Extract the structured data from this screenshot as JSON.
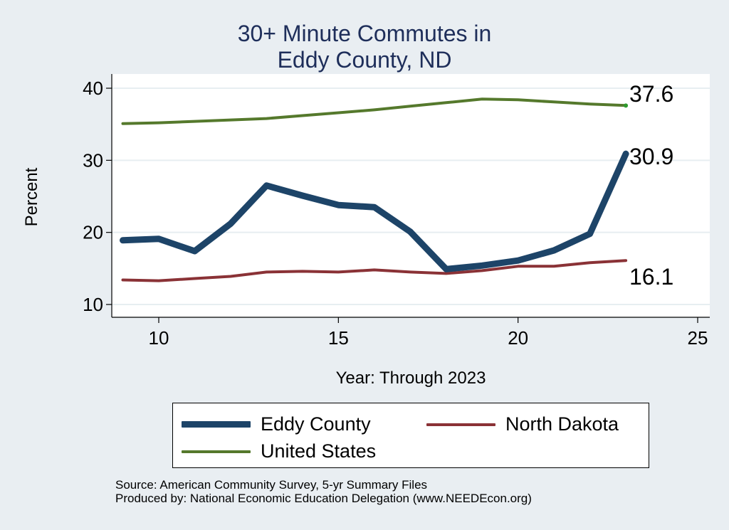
{
  "title_line1": "30+ Minute Commutes in",
  "title_line2": "Eddy County, ND",
  "notes": {
    "source": "Source: American Community Survey, 5-yr Summary Files",
    "produced": "Produced by: National Economic Education Delegation (www.NEEDEcon.org)"
  },
  "colors": {
    "eddy": "#1d4468",
    "nd": "#8a3236",
    "us": "#55792c",
    "grid": "#e7eef1",
    "background": "#e9eef2",
    "plot": "#ffffff",
    "title": "#1e2e5a"
  },
  "chart_data": {
    "type": "line",
    "title": "30+ Minute Commutes in Eddy County, ND",
    "xlabel": "Year: Through 2023",
    "ylabel": "Percent",
    "xlim": [
      8.7,
      25.4
    ],
    "ylim": [
      8.5,
      41.5
    ],
    "xticks": [
      10,
      15,
      20,
      25
    ],
    "yticks": [
      10,
      20,
      30,
      40
    ],
    "grid": true,
    "legend_position": "bottom",
    "x": [
      9,
      10,
      11,
      12,
      13,
      14,
      15,
      16,
      17,
      18,
      19,
      20,
      21,
      22,
      23
    ],
    "series": [
      {
        "key": "eddy",
        "name": "Eddy County",
        "values": [
          18.9,
          19.1,
          17.4,
          21.2,
          26.5,
          25.1,
          23.8,
          23.5,
          20.1,
          14.9,
          15.4,
          16.1,
          17.5,
          19.8,
          30.9
        ],
        "end_label": "30.9"
      },
      {
        "key": "nd",
        "name": "North Dakota",
        "values": [
          13.4,
          13.3,
          13.6,
          13.9,
          14.5,
          14.6,
          14.5,
          14.8,
          14.5,
          14.3,
          14.7,
          15.3,
          15.3,
          15.8,
          16.1
        ],
        "end_label": "16.1"
      },
      {
        "key": "us",
        "name": "United States",
        "values": [
          35.1,
          35.2,
          35.4,
          35.6,
          35.8,
          36.2,
          36.6,
          37.0,
          37.5,
          38.0,
          38.5,
          38.4,
          38.1,
          37.8,
          37.6
        ],
        "end_label": "37.6"
      }
    ]
  }
}
